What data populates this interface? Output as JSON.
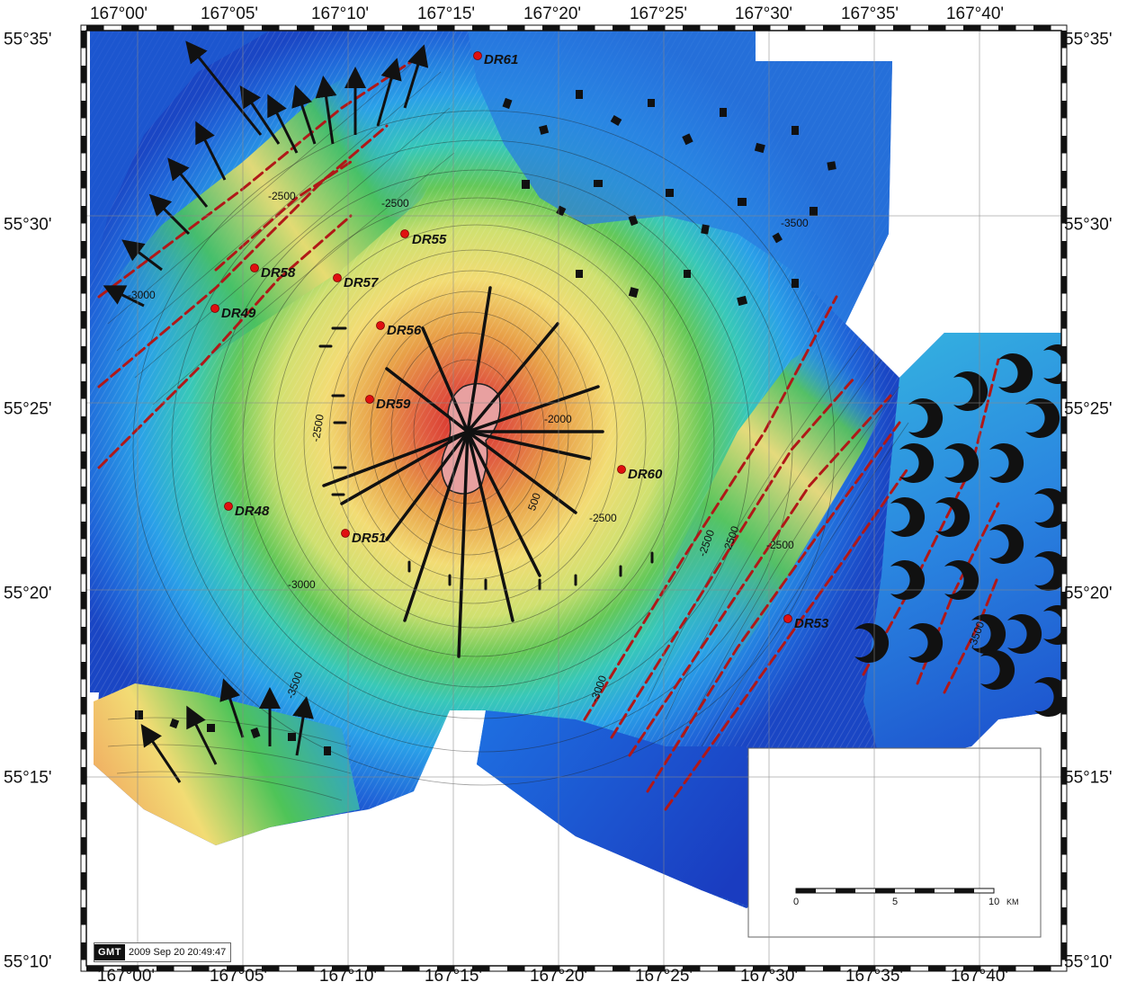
{
  "axes": {
    "longitude_labels": [
      "167°00'",
      "167°05'",
      "167°10'",
      "167°15'",
      "167°20'",
      "167°25'",
      "167°30'",
      "167°35'",
      "167°40'"
    ],
    "latitude_labels": [
      "55°35'",
      "55°30'",
      "55°25'",
      "55°20'",
      "55°15'",
      "55°10'"
    ]
  },
  "stations": [
    {
      "id": "DR61"
    },
    {
      "id": "DR55"
    },
    {
      "id": "DR58"
    },
    {
      "id": "DR57"
    },
    {
      "id": "DR49"
    },
    {
      "id": "DR56"
    },
    {
      "id": "DR59"
    },
    {
      "id": "DR60"
    },
    {
      "id": "DR48"
    },
    {
      "id": "DR51"
    },
    {
      "id": "DR53"
    }
  ],
  "contour_labels": [
    "-2500",
    "-2500",
    "-3000",
    "-3500",
    "-2000",
    "-2500",
    "-2500",
    "-2500",
    "-3000",
    "-3500",
    "-3000",
    "-2500",
    "-3500",
    "500",
    "2500"
  ],
  "scale_bar": {
    "ticks": [
      "0",
      "5",
      "10"
    ],
    "unit": "KM"
  },
  "stamp": {
    "logo": "GMT",
    "text": "2009 Sep 20 20:49:47"
  },
  "colors": {
    "deep": "#1840c8",
    "mid_blue": "#2aa0e8",
    "cyan": "#38d8d8",
    "green": "#3ec860",
    "yellow": "#f2e070",
    "orange": "#e8a040",
    "summit": "#d03030",
    "station_marker": "#e01010",
    "fault": "#b01818"
  }
}
